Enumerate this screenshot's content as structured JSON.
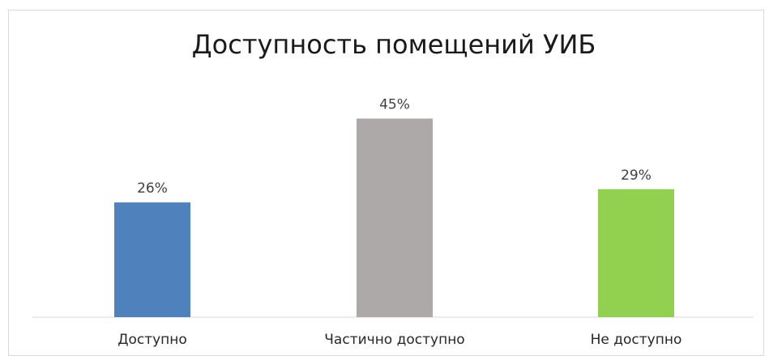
{
  "chart_data": {
    "type": "bar",
    "title": "Доступность помещений УИБ",
    "categories": [
      "Доступно",
      "Частично доступно",
      "Не доступно"
    ],
    "values": [
      26,
      45,
      29
    ],
    "data_labels": [
      "26%",
      "45%",
      "29%"
    ],
    "colors": [
      "#4F81BD",
      "#ADA9A8",
      "#92D050"
    ],
    "ylim": [
      0,
      55
    ],
    "grid": false,
    "legend": "none"
  }
}
